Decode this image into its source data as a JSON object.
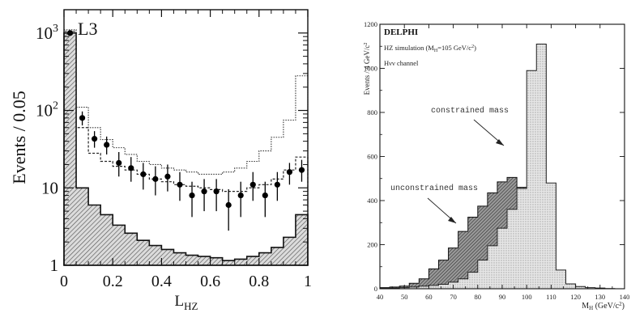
{
  "chart_data": [
    {
      "type": "histogram",
      "experiment": "L3",
      "xlabel_main": "L",
      "xlabel_sub": "HZ",
      "ylabel": "Events / 0.05",
      "yscale": "log",
      "xlim": [
        0,
        1
      ],
      "ylim": [
        1,
        2000
      ],
      "x_ticks": [
        "0",
        "0.2",
        "0.4",
        "0.6",
        "0.8",
        "1"
      ],
      "y_ticks": [
        {
          "value": 1,
          "label": "1"
        },
        {
          "value": 10,
          "label": "10"
        },
        {
          "value": 100,
          "base": "10",
          "exp": "2"
        },
        {
          "value": 1000,
          "base": "10",
          "exp": "3"
        }
      ],
      "bin_edges": [
        0,
        0.05,
        0.1,
        0.15,
        0.2,
        0.25,
        0.3,
        0.35,
        0.4,
        0.45,
        0.5,
        0.55,
        0.6,
        0.65,
        0.7,
        0.75,
        0.8,
        0.85,
        0.9,
        0.95,
        1.0
      ],
      "series": [
        {
          "style": "hatched",
          "values": [
            1000,
            10,
            6,
            4.5,
            3.3,
            2.6,
            2.1,
            1.8,
            1.6,
            1.45,
            1.35,
            1.3,
            1.25,
            1.15,
            1.2,
            1.3,
            1.45,
            1.7,
            2.3,
            4.5
          ]
        },
        {
          "style": "dashed",
          "values": [
            1100,
            110,
            60,
            42,
            33,
            27,
            22,
            20,
            18,
            17,
            16,
            15,
            15,
            16,
            18,
            22,
            30,
            45,
            75,
            280
          ]
        },
        {
          "style": "dotted",
          "values": [
            1050,
            60,
            28,
            22,
            19,
            17,
            15,
            13,
            12,
            11,
            10.5,
            10,
            9.5,
            9,
            9,
            10,
            11,
            13,
            17,
            25
          ]
        }
      ],
      "points": {
        "x": [
          0.025,
          0.075,
          0.125,
          0.175,
          0.225,
          0.275,
          0.325,
          0.375,
          0.425,
          0.475,
          0.525,
          0.575,
          0.625,
          0.675,
          0.725,
          0.775,
          0.825,
          0.875,
          0.925,
          0.975
        ],
        "y": [
          1000,
          80,
          43,
          36,
          21,
          18,
          15,
          13,
          14,
          11,
          8,
          9,
          9,
          6,
          8,
          11,
          8,
          11,
          16,
          17
        ],
        "err_lo": [
          940,
          64,
          33,
          27,
          14,
          12,
          9.5,
          8,
          9,
          6.8,
          4.2,
          5,
          5,
          2.8,
          4.2,
          6.8,
          4.2,
          6.8,
          11,
          12
        ],
        "err_hi": [
          1060,
          97,
          54,
          46,
          29,
          25,
          21,
          19,
          20,
          16,
          12,
          13,
          13,
          9.6,
          12,
          16,
          12,
          16,
          21,
          23
        ]
      }
    },
    {
      "type": "histogram",
      "experiment": "DELPHI",
      "subtitle_pre": "HZ simulation (M",
      "subtitle_sub": "H",
      "subtitle_post": "=105 GeV/c",
      "subtitle_sup": "2",
      "subtitle_end": ")",
      "channel": "Hνν channel",
      "ylabel": "Events / 4 GeV/c",
      "ylabel_sup": "2",
      "xlabel_pre": "M",
      "xlabel_sub": "H",
      "xlabel_post": " (GeV/c",
      "xlabel_sup": "2",
      "xlabel_end": ")",
      "xlim": [
        40,
        140
      ],
      "ylim": [
        0,
        1200
      ],
      "x_ticks": [
        "40",
        "50",
        "60",
        "70",
        "80",
        "90",
        "100",
        "110",
        "120",
        "130",
        "140"
      ],
      "y_ticks": [
        "0",
        "200",
        "400",
        "600",
        "800",
        "1000",
        "1200"
      ],
      "annotations": [
        "constrained mass",
        "unconstrained mass"
      ],
      "bin_edges": [
        40,
        44,
        48,
        52,
        56,
        60,
        64,
        68,
        72,
        76,
        80,
        84,
        88,
        92,
        96,
        100,
        104,
        108,
        112,
        116,
        120,
        124,
        128,
        132,
        136,
        140
      ],
      "series": [
        {
          "label": "unconstrained mass",
          "style": "dark-hatched",
          "values": [
            5,
            8,
            12,
            25,
            45,
            90,
            130,
            185,
            260,
            325,
            375,
            435,
            485,
            505,
            460,
            295,
            160,
            75,
            30,
            12,
            5,
            2,
            1,
            0,
            0
          ]
        },
        {
          "label": "constrained mass",
          "style": "dotted-light",
          "values": [
            2,
            3,
            5,
            8,
            12,
            15,
            20,
            30,
            45,
            75,
            130,
            195,
            275,
            360,
            455,
            990,
            1110,
            480,
            85,
            22,
            10,
            5,
            3,
            1,
            0
          ]
        }
      ]
    }
  ]
}
